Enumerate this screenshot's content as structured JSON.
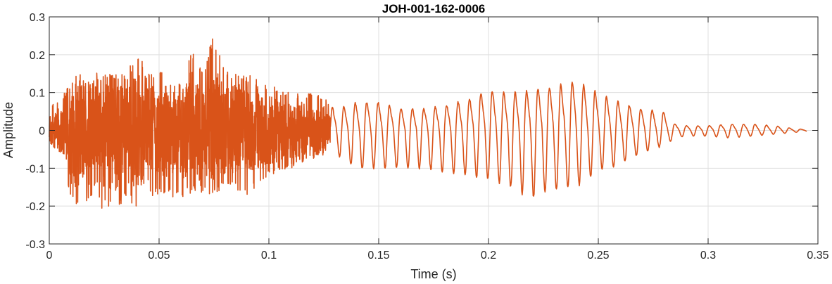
{
  "chart_data": {
    "type": "line",
    "title": "JOH-001-162-0006",
    "xlabel": "Time (s)",
    "ylabel": "Amplitude",
    "xlim": [
      0,
      0.35
    ],
    "ylim": [
      -0.3,
      0.3
    ],
    "x_ticks": [
      0,
      0.05,
      0.1,
      0.15,
      0.2,
      0.25,
      0.3,
      0.35
    ],
    "x_tick_labels": [
      "0",
      "0.05",
      "0.1",
      "0.15",
      "0.2",
      "0.25",
      "0.3",
      "0.35"
    ],
    "y_ticks": [
      -0.3,
      -0.2,
      -0.1,
      0,
      0.1,
      0.2,
      0.3
    ],
    "y_tick_labels": [
      "-0.3",
      "-0.2",
      "-0.1",
      "0",
      "0.1",
      "0.2",
      "0.3"
    ],
    "grid": true,
    "color": "#d95319",
    "series": [
      {
        "name": "",
        "envelope": {
          "x": [
            0,
            0.005,
            0.01,
            0.02,
            0.03,
            0.035,
            0.04,
            0.045,
            0.05,
            0.06,
            0.065,
            0.07,
            0.075,
            0.08,
            0.09,
            0.1,
            0.11,
            0.12,
            0.13,
            0.14,
            0.15,
            0.16,
            0.17,
            0.18,
            0.19,
            0.2,
            0.21,
            0.22,
            0.23,
            0.24,
            0.25,
            0.26,
            0.27,
            0.28,
            0.285,
            0.29,
            0.3,
            0.31,
            0.32,
            0.33,
            0.34,
            0.345
          ],
          "upper": [
            0.07,
            0.08,
            0.13,
            0.13,
            0.16,
            0.15,
            0.21,
            0.15,
            0.17,
            0.12,
            0.22,
            0.16,
            0.26,
            0.16,
            0.15,
            0.12,
            0.1,
            0.1,
            0.07,
            0.09,
            0.09,
            0.07,
            0.07,
            0.08,
            0.1,
            0.13,
            0.12,
            0.13,
            0.14,
            0.16,
            0.12,
            0.09,
            0.07,
            0.06,
            0.02,
            0.015,
            0.015,
            0.02,
            0.02,
            0.015,
            0.005,
            0.003
          ],
          "lower": [
            -0.06,
            -0.06,
            -0.2,
            -0.2,
            -0.22,
            -0.18,
            -0.21,
            -0.18,
            -0.17,
            -0.18,
            -0.17,
            -0.17,
            -0.18,
            -0.15,
            -0.17,
            -0.12,
            -0.1,
            -0.07,
            -0.06,
            -0.1,
            -0.1,
            -0.1,
            -0.1,
            -0.11,
            -0.12,
            -0.13,
            -0.15,
            -0.18,
            -0.16,
            -0.15,
            -0.11,
            -0.09,
            -0.06,
            -0.04,
            -0.02,
            -0.015,
            -0.015,
            -0.02,
            -0.015,
            -0.01,
            -0.005,
            -0.003
          ]
        },
        "voiced_period_s": 0.0052
      }
    ]
  }
}
